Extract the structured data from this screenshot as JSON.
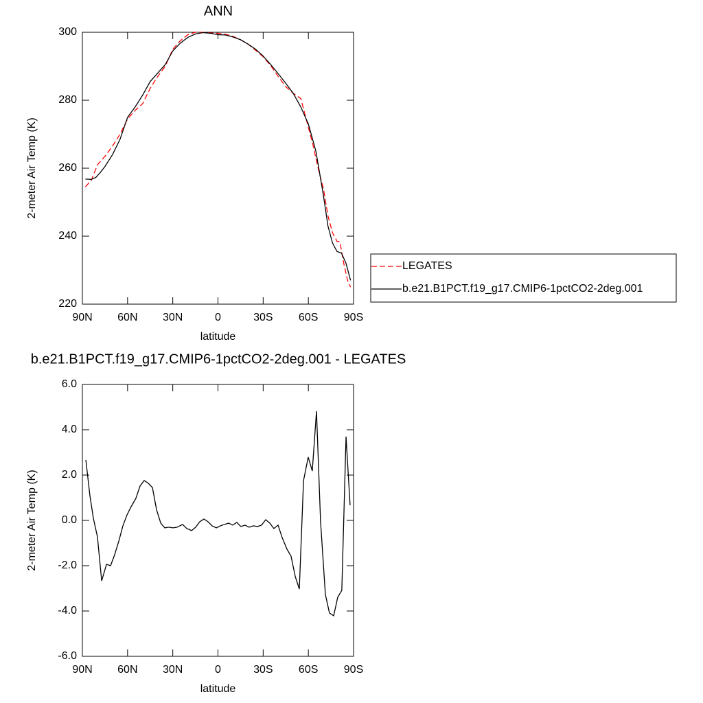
{
  "chart_data": [
    {
      "type": "line",
      "title": "ANN",
      "x_label": "latitude",
      "y_label": "2-meter Air Temp (K)",
      "xlim": [
        90,
        -90
      ],
      "xticks": [
        {
          "value": 90,
          "label": "90N"
        },
        {
          "value": 60,
          "label": "60N"
        },
        {
          "value": 30,
          "label": "30N"
        },
        0,
        {
          "value": -30,
          "label": "30S"
        },
        {
          "value": -60,
          "label": "60S"
        },
        {
          "value": -90,
          "label": "90S"
        }
      ],
      "ylim": [
        220,
        300
      ],
      "yticks": [
        220,
        240,
        260,
        280,
        300
      ],
      "legend": "right",
      "series": [
        {
          "name": "LEGATES",
          "color": "#ff0000",
          "dashed": true,
          "x": [
            88,
            84,
            80,
            75,
            70,
            65,
            60,
            55,
            50,
            45,
            40,
            35,
            30,
            25,
            20,
            15,
            10,
            5,
            0,
            -5,
            -10,
            -15,
            -20,
            -25,
            -30,
            -35,
            -40,
            -45,
            -50,
            -55,
            -60,
            -63,
            -67,
            -70,
            -73,
            -76,
            -79,
            -81,
            -83,
            -86,
            -88
          ],
          "values": [
            254.5,
            256.5,
            261,
            263.5,
            266.5,
            270,
            274.5,
            277,
            279,
            283.5,
            287,
            290,
            295,
            297.5,
            299.3,
            300,
            300,
            299.8,
            299.7,
            299.4,
            298.8,
            297.8,
            296.5,
            294.7,
            292.8,
            290.2,
            287,
            284,
            282,
            280.5,
            272,
            267,
            259,
            254,
            246,
            241,
            238.5,
            238.3,
            233,
            227,
            225
          ]
        },
        {
          "name": "b.e21.B1PCT.f19_g17.CMIP6-1pctCO2-2deg.001",
          "color": "#000000",
          "dashed": false,
          "x": [
            88,
            84,
            81,
            78,
            75,
            70,
            65,
            60,
            55,
            50,
            45,
            40,
            35,
            30,
            25,
            20,
            15,
            10,
            5,
            0,
            -5,
            -10,
            -15,
            -20,
            -25,
            -30,
            -35,
            -40,
            -45,
            -50,
            -55,
            -60,
            -65,
            -70,
            -73,
            -76,
            -79,
            -82,
            -85,
            -88
          ],
          "values": [
            256.8,
            256.7,
            257.3,
            258.8,
            260.5,
            264,
            268.5,
            275,
            278,
            281.5,
            285.5,
            288,
            290.5,
            294.5,
            296.8,
            298.5,
            299.5,
            299.9,
            299.7,
            299.3,
            299.2,
            298.6,
            297.8,
            296.5,
            295,
            293,
            290.5,
            287.8,
            285,
            282,
            278,
            273,
            265,
            252,
            243,
            238,
            235.5,
            235,
            232,
            227
          ]
        }
      ]
    },
    {
      "type": "line",
      "title": "b.e21.B1PCT.f19_g17.CMIP6-1pctCO2-2deg.001 - LEGATES",
      "x_label": "latitude",
      "y_label": "2-meter Air Temp (K)",
      "xlim": [
        90,
        -90
      ],
      "xticks": [
        {
          "value": 90,
          "label": "90N"
        },
        {
          "value": 60,
          "label": "60N"
        },
        {
          "value": 30,
          "label": "30N"
        },
        0,
        {
          "value": -30,
          "label": "30S"
        },
        {
          "value": -60,
          "label": "60S"
        },
        {
          "value": -90,
          "label": "90S"
        }
      ],
      "ylim": [
        -6,
        6
      ],
      "yticks": [
        {
          "value": -6,
          "label": "-6.0"
        },
        {
          "value": -4,
          "label": "-4.0"
        },
        {
          "value": -2,
          "label": "-2.0"
        },
        {
          "value": 0,
          "label": "0.0"
        },
        {
          "value": 2,
          "label": "2.0"
        },
        {
          "value": 4,
          "label": "4.0"
        },
        {
          "value": 6,
          "label": "6.0"
        }
      ],
      "series": [
        {
          "color": "#000000",
          "dashed": false,
          "x": [
            87.7,
            85,
            82.7,
            80,
            77.2,
            74,
            71.3,
            68.6,
            65.8,
            63.1,
            60.4,
            57.6,
            54.5,
            51.7,
            49,
            46.3,
            43.5,
            40.8,
            38,
            35.3,
            32.6,
            29.9,
            27.1,
            23.5,
            20.7,
            17.5,
            14.8,
            12.1,
            9.3,
            6.6,
            3.9,
            1.1,
            -1.6,
            -4.3,
            -7.1,
            -9.8,
            -12.5,
            -15.2,
            -18,
            -20.7,
            -23.5,
            -26.2,
            -28.9,
            -31.7,
            -34.4,
            -37.1,
            -39.9,
            -42.6,
            -45.8,
            -48.5,
            -51.3,
            -54,
            -56.8,
            -59.9,
            -62.6,
            -65.4,
            -68.1,
            -71.3,
            -74,
            -76.8,
            -79.5,
            -82.2,
            -85,
            -87.7
          ],
          "values": [
            2.67,
            1.09,
            0.09,
            -0.73,
            -2.67,
            -1.94,
            -2.0,
            -1.52,
            -0.91,
            -0.24,
            0.24,
            0.61,
            0.97,
            1.52,
            1.76,
            1.64,
            1.45,
            0.48,
            -0.12,
            -0.33,
            -0.3,
            -0.33,
            -0.3,
            -0.18,
            -0.36,
            -0.45,
            -0.3,
            -0.06,
            0.06,
            -0.06,
            -0.24,
            -0.33,
            -0.24,
            -0.18,
            -0.12,
            -0.21,
            -0.09,
            -0.27,
            -0.21,
            -0.3,
            -0.24,
            -0.27,
            -0.21,
            0.03,
            -0.12,
            -0.36,
            -0.21,
            -0.76,
            -1.27,
            -1.58,
            -2.48,
            -3.03,
            1.76,
            2.79,
            2.18,
            4.82,
            -0.06,
            -3.27,
            -4.09,
            -4.21,
            -3.39,
            -3.09,
            3.7,
            0.67
          ]
        }
      ]
    }
  ]
}
